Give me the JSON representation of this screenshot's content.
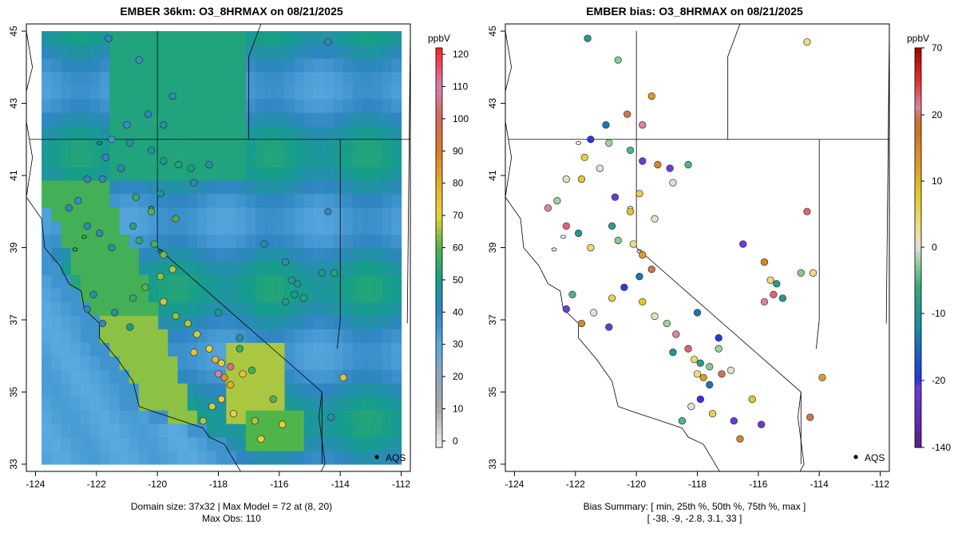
{
  "left_panel": {
    "title": "EMBER 36km: O3_8HRMAX on 08/21/2025",
    "caption_line1": "Domain size: 37x32 | Max Model = 72 at (8, 20)",
    "caption_line2": "Max Obs: 110",
    "colorbar": {
      "unit": "ppbV",
      "ticks": [
        "120",
        "110",
        "100",
        "90",
        "80",
        "70",
        "60",
        "50",
        "40",
        "30",
        "20",
        "10",
        "0"
      ],
      "tick_values": [
        120,
        110,
        100,
        90,
        80,
        70,
        60,
        50,
        40,
        30,
        20,
        10,
        0
      ],
      "range": [
        -2,
        122
      ]
    }
  },
  "right_panel": {
    "title": "EMBER bias: O3_8HRMAX on 08/21/2025",
    "caption_line1": "Bias Summary: [ min, 25th %, 50th %, 75th %, max ]",
    "caption_line2": "[ -38,   -9,   -2.8,   3.1,   33 ]",
    "colorbar": {
      "unit": "ppbV",
      "ticks": [
        "70",
        "20",
        "10",
        "0",
        "-10",
        "-20",
        "-140"
      ],
      "tick_values": [
        70,
        20,
        10,
        0,
        -10,
        -20,
        -140
      ]
    }
  },
  "axes": {
    "x_ticks": [
      "-124",
      "-122",
      "-120",
      "-118",
      "-116",
      "-114",
      "-112"
    ],
    "x_values": [
      -124,
      -122,
      -120,
      -118,
      -116,
      -114,
      -112
    ],
    "y_ticks": [
      "45",
      "43",
      "41",
      "39",
      "37",
      "35",
      "33"
    ],
    "y_values": [
      45,
      43,
      41,
      39,
      37,
      35,
      33
    ],
    "lon_range": [
      -124.3,
      -111.7
    ],
    "lat_range": [
      32.8,
      45.2
    ]
  },
  "marker": {
    "label": "AQS",
    "lon": -112.8,
    "lat": 33.2
  },
  "colors": {
    "ocean": "#5aa9df",
    "land_blue": "#2f86c2",
    "teal": "#2aa591",
    "green": "#4fb54a",
    "yellow": "#e8d33b",
    "orange": "#e39a2a"
  }
}
